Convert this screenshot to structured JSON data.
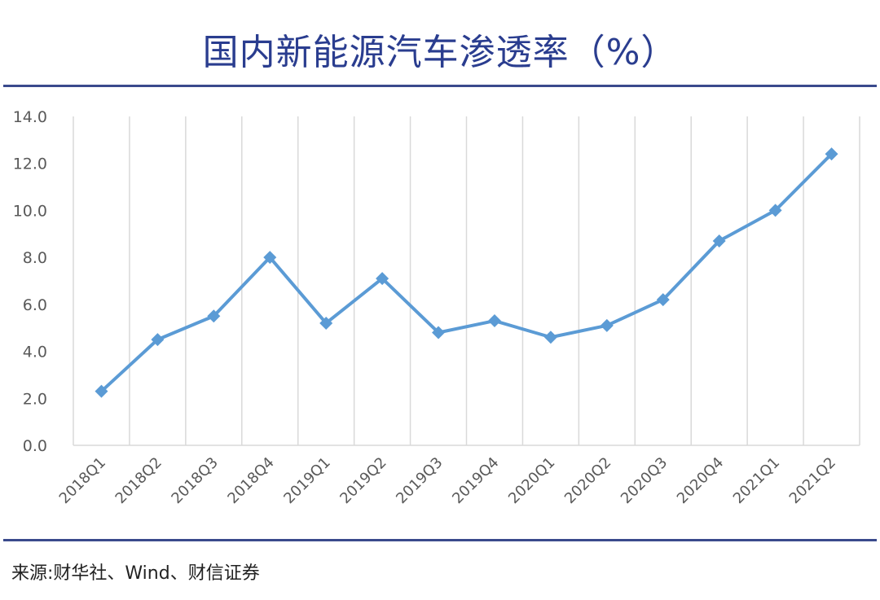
{
  "title": "国内新能源汽车渗透率（%）",
  "source": "来源:财华社、Wind、财信证券",
  "colors": {
    "title": "#2a3d8f",
    "rule": "#3a4a8c",
    "line": "#5b9bd5",
    "grid": "#d9d9d9",
    "axis_text": "#595959"
  },
  "chart_data": {
    "type": "line",
    "title": "国内新能源汽车渗透率（%）",
    "xlabel": "",
    "ylabel": "",
    "categories": [
      "2018Q1",
      "2018Q2",
      "2018Q3",
      "2018Q4",
      "2019Q1",
      "2019Q2",
      "2019Q3",
      "2019Q4",
      "2020Q1",
      "2020Q2",
      "2020Q3",
      "2020Q4",
      "2021Q1",
      "2021Q2"
    ],
    "series": [
      {
        "values": [
          2.3,
          4.5,
          5.5,
          8.0,
          5.2,
          7.1,
          4.8,
          5.3,
          4.6,
          5.1,
          6.2,
          8.7,
          10.0,
          12.4
        ]
      }
    ],
    "ylim": [
      0,
      14
    ],
    "yticks": [
      "0.0",
      "2.0",
      "4.0",
      "6.0",
      "8.0",
      "10.0",
      "12.0",
      "14.0"
    ],
    "grid": "vertical",
    "legend": "none",
    "marker": "diamond"
  }
}
